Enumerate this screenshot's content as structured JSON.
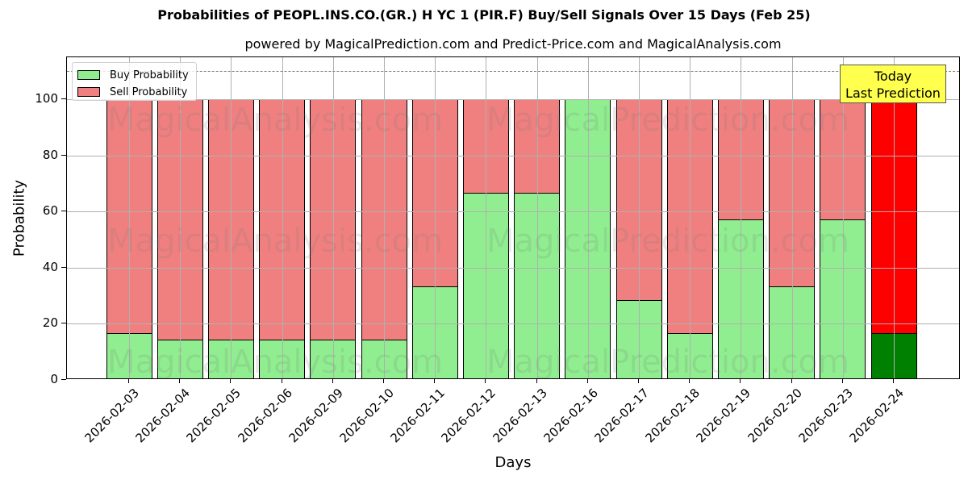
{
  "chart_data": {
    "type": "bar",
    "stacked": true,
    "title": "Probabilities of PEOPL.INS.CO.(GR.) H YC 1 (PIR.F) Buy/Sell Signals Over 15 Days (Feb 25)",
    "subtitle": "powered by MagicalPrediction.com and Predict-Price.com and MagicalAnalysis.com",
    "xlabel": "Days",
    "ylabel": "Probability",
    "ylim": [
      0,
      115
    ],
    "yticks": [
      0,
      20,
      40,
      60,
      80,
      100
    ],
    "grid": true,
    "legend_position": "upper left",
    "reference_line": {
      "y": 110,
      "style": "dashed",
      "color": "#808080"
    },
    "categories": [
      "2026-02-03",
      "2026-02-04",
      "2026-02-05",
      "2026-02-06",
      "2026-02-09",
      "2026-02-10",
      "2026-02-11",
      "2026-02-12",
      "2026-02-13",
      "2026-02-16",
      "2026-02-17",
      "2026-02-18",
      "2026-02-19",
      "2026-02-20",
      "2026-02-23",
      "2026-02-24"
    ],
    "series": [
      {
        "name": "Buy Probability",
        "color": "#90ee90",
        "values": [
          16.67,
          14.29,
          14.29,
          14.29,
          14.29,
          14.29,
          33.33,
          66.67,
          66.67,
          100,
          28.57,
          16.67,
          57.14,
          33.33,
          57.14,
          16.67
        ]
      },
      {
        "name": "Sell Probability",
        "color": "#f08080",
        "values": [
          83.33,
          85.71,
          85.71,
          85.71,
          85.71,
          85.71,
          66.67,
          33.33,
          33.33,
          0,
          71.43,
          83.33,
          42.86,
          66.67,
          42.86,
          83.33
        ]
      }
    ],
    "highlight": {
      "index": 15,
      "buy_color": "#008000",
      "sell_color": "#ff0000"
    },
    "annotation": {
      "text_line1": "Today",
      "text_line2": "Last Prediction",
      "background": "#ffff4d"
    },
    "watermarks": [
      "MagicalAnalysis.com",
      "MagicalPrediction.com"
    ]
  },
  "legend": {
    "buy": "Buy Probability",
    "sell": "Sell Probability"
  }
}
